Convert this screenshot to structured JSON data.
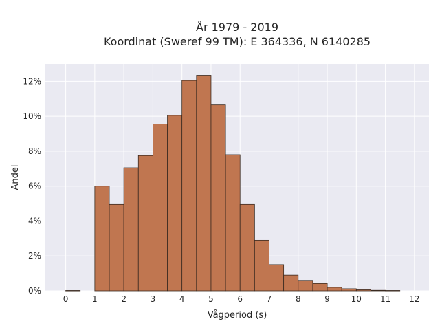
{
  "chart_data": {
    "type": "bar",
    "title_line1": "År 1979 - 2019",
    "title_line2": "Koordinat (Sweref 99 TM): E 364336, N 6140285",
    "xlabel": "Vågperiod (s)",
    "ylabel": "Andel",
    "xlim": [
      -0.7,
      12.5
    ],
    "ylim": [
      0,
      13
    ],
    "x_ticks": [
      0,
      1,
      2,
      3,
      4,
      5,
      6,
      7,
      8,
      9,
      10,
      11,
      12
    ],
    "y_ticks": [
      0,
      2,
      4,
      6,
      8,
      10,
      12
    ],
    "y_tick_labels": [
      "0%",
      "2%",
      "4%",
      "6%",
      "8%",
      "10%",
      "12%"
    ],
    "bin_width": 0.5,
    "bins": [
      {
        "x0": 0.0,
        "value": 0.02
      },
      {
        "x0": 0.5,
        "value": 0.0
      },
      {
        "x0": 1.0,
        "value": 6.0
      },
      {
        "x0": 1.5,
        "value": 4.95
      },
      {
        "x0": 2.0,
        "value": 7.05
      },
      {
        "x0": 2.5,
        "value": 7.75
      },
      {
        "x0": 3.0,
        "value": 9.55
      },
      {
        "x0": 3.5,
        "value": 10.05
      },
      {
        "x0": 4.0,
        "value": 12.05
      },
      {
        "x0": 4.5,
        "value": 12.35
      },
      {
        "x0": 5.0,
        "value": 10.65
      },
      {
        "x0": 5.5,
        "value": 7.8
      },
      {
        "x0": 6.0,
        "value": 4.95
      },
      {
        "x0": 6.5,
        "value": 2.9
      },
      {
        "x0": 7.0,
        "value": 1.5
      },
      {
        "x0": 7.5,
        "value": 0.9
      },
      {
        "x0": 8.0,
        "value": 0.6
      },
      {
        "x0": 8.5,
        "value": 0.42
      },
      {
        "x0": 9.0,
        "value": 0.2
      },
      {
        "x0": 9.5,
        "value": 0.12
      },
      {
        "x0": 10.0,
        "value": 0.06
      },
      {
        "x0": 10.5,
        "value": 0.03
      },
      {
        "x0": 11.0,
        "value": 0.02
      }
    ],
    "bar_color": "#c07650",
    "bar_edge_color": "#3a2a20",
    "plot_background": "#eaeaf2",
    "grid": true,
    "grid_color": "#ffffff"
  }
}
